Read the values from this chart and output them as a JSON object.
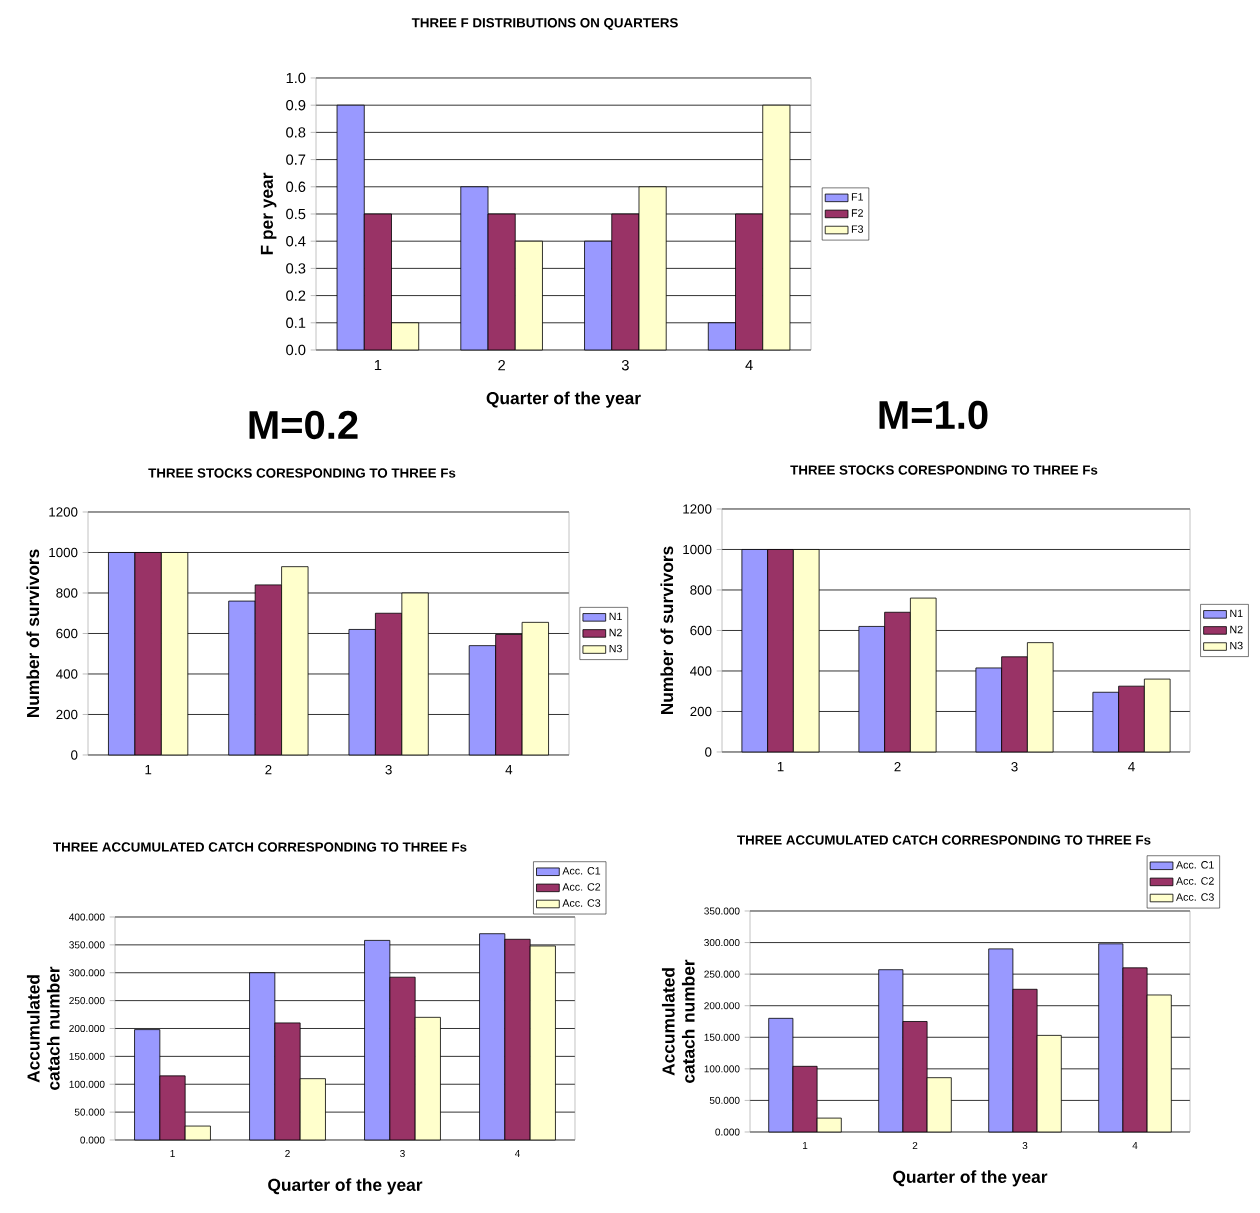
{
  "chart_data": [
    {
      "type": "bar",
      "title": "THREE **F** DISTRIBUTIONS ON QUARTERS",
      "xlabel": "Quarter of the year",
      "ylabel": "F per year",
      "categories": [
        "1",
        "2",
        "3",
        "4"
      ],
      "series": [
        {
          "name": "F1",
          "color": "#9999ff",
          "values": [
            0.9,
            0.6,
            0.4,
            0.1
          ]
        },
        {
          "name": "F2",
          "color": "#993366",
          "values": [
            0.5,
            0.5,
            0.5,
            0.5
          ]
        },
        {
          "name": "F3",
          "color": "#ffffcc",
          "values": [
            0.1,
            0.4,
            0.6,
            0.9
          ]
        }
      ],
      "ylim": [
        0,
        1
      ],
      "yticks": [
        {
          "value": 0,
          "label": "0.0"
        },
        {
          "value": 0.1,
          "label": "0.1"
        },
        {
          "value": 0.2,
          "label": "0.2"
        },
        {
          "value": 0.3,
          "label": "0.3"
        },
        {
          "value": 0.4,
          "label": "0.4"
        },
        {
          "value": 0.5,
          "label": "0.5"
        },
        {
          "value": 0.6,
          "label": "0.6"
        },
        {
          "value": 0.7,
          "label": "0.7"
        },
        {
          "value": 0.8,
          "label": "0.8"
        },
        {
          "value": 0.9,
          "label": "0.9"
        },
        {
          "value": 1,
          "label": "1.0"
        }
      ],
      "grid": "y",
      "legend": "right"
    },
    {
      "type": "bar",
      "title": "THREE STOCKS CORESPONDING TO THREE Fs",
      "subtitle": "M=0.2",
      "ylabel": "Number of survivors",
      "categories": [
        "1",
        "2",
        "3",
        "4"
      ],
      "series": [
        {
          "name": "N1",
          "color": "#9999ff",
          "values": [
            1000,
            760,
            620,
            540
          ]
        },
        {
          "name": "N2",
          "color": "#993366",
          "values": [
            1000,
            840,
            700,
            595
          ]
        },
        {
          "name": "N3",
          "color": "#ffffcc",
          "values": [
            1000,
            930,
            800,
            655
          ]
        }
      ],
      "ylim": [
        0,
        1200
      ],
      "yticks": [
        0,
        200,
        400,
        600,
        800,
        1000,
        1200
      ],
      "grid": "y",
      "legend": "right"
    },
    {
      "type": "bar",
      "title": "THREE STOCKS CORESPONDING TO THREE Fs",
      "subtitle": "M=1.0",
      "ylabel": "Number of survivors",
      "categories": [
        "1",
        "2",
        "3",
        "4"
      ],
      "series": [
        {
          "name": "N1",
          "color": "#9999ff",
          "values": [
            1000,
            620,
            415,
            295
          ]
        },
        {
          "name": "N2",
          "color": "#993366",
          "values": [
            1000,
            690,
            470,
            325
          ]
        },
        {
          "name": "N3",
          "color": "#ffffcc",
          "values": [
            1000,
            760,
            540,
            360
          ]
        }
      ],
      "ylim": [
        0,
        1200
      ],
      "yticks": [
        0,
        200,
        400,
        600,
        800,
        1000,
        1200
      ],
      "grid": "y",
      "legend": "right"
    },
    {
      "type": "bar",
      "title": "THREE ACCUMULATED CATCH CORRESPONDING TO THREE Fs",
      "xlabel": "Quarter of the year",
      "ylabel": "Accumulated catach number",
      "categories": [
        "1",
        "2",
        "3",
        "4"
      ],
      "series": [
        {
          "name": "Acc. C1",
          "color": "#9999ff",
          "values": [
            198,
            300,
            358,
            370
          ]
        },
        {
          "name": "Acc. C2",
          "color": "#993366",
          "values": [
            115,
            210,
            292,
            360
          ]
        },
        {
          "name": "Acc. C3",
          "color": "#ffffcc",
          "values": [
            25,
            110,
            220,
            348
          ]
        }
      ],
      "ylim": [
        0,
        400
      ],
      "yticks": [
        {
          "value": 0,
          "label": "0.000"
        },
        {
          "value": 50,
          "label": "50.000"
        },
        {
          "value": 100,
          "label": "100.000"
        },
        {
          "value": 150,
          "label": "150.000"
        },
        {
          "value": 200,
          "label": "200.000"
        },
        {
          "value": 250,
          "label": "250.000"
        },
        {
          "value": 300,
          "label": "300.000"
        },
        {
          "value": 350,
          "label": "350.000"
        },
        {
          "value": 400,
          "label": "400.000"
        }
      ],
      "grid": "y",
      "legend": "top right"
    },
    {
      "type": "bar",
      "title": "THREE ACCUMULATED CATCH CORRESPONDING TO THREE Fs",
      "xlabel": "Quarter of the year",
      "ylabel": "Accumulated catach number",
      "categories": [
        "1",
        "2",
        "3",
        "4"
      ],
      "series": [
        {
          "name": "Acc. C1",
          "color": "#9999ff",
          "values": [
            180,
            257,
            290,
            298
          ]
        },
        {
          "name": "Acc. C2",
          "color": "#993366",
          "values": [
            104,
            175,
            226,
            260
          ]
        },
        {
          "name": "Acc. C3",
          "color": "#ffffcc",
          "values": [
            22,
            86,
            153,
            217
          ]
        }
      ],
      "ylim": [
        0,
        350
      ],
      "yticks": [
        {
          "value": 0,
          "label": "0.000"
        },
        {
          "value": 50,
          "label": "50.000"
        },
        {
          "value": 100,
          "label": "100.000"
        },
        {
          "value": 150,
          "label": "150.000"
        },
        {
          "value": 200,
          "label": "200.000"
        },
        {
          "value": 250,
          "label": "250.000"
        },
        {
          "value": 300,
          "label": "300.000"
        },
        {
          "value": 350,
          "label": "350.000"
        }
      ],
      "grid": "y",
      "legend": "top right"
    }
  ]
}
